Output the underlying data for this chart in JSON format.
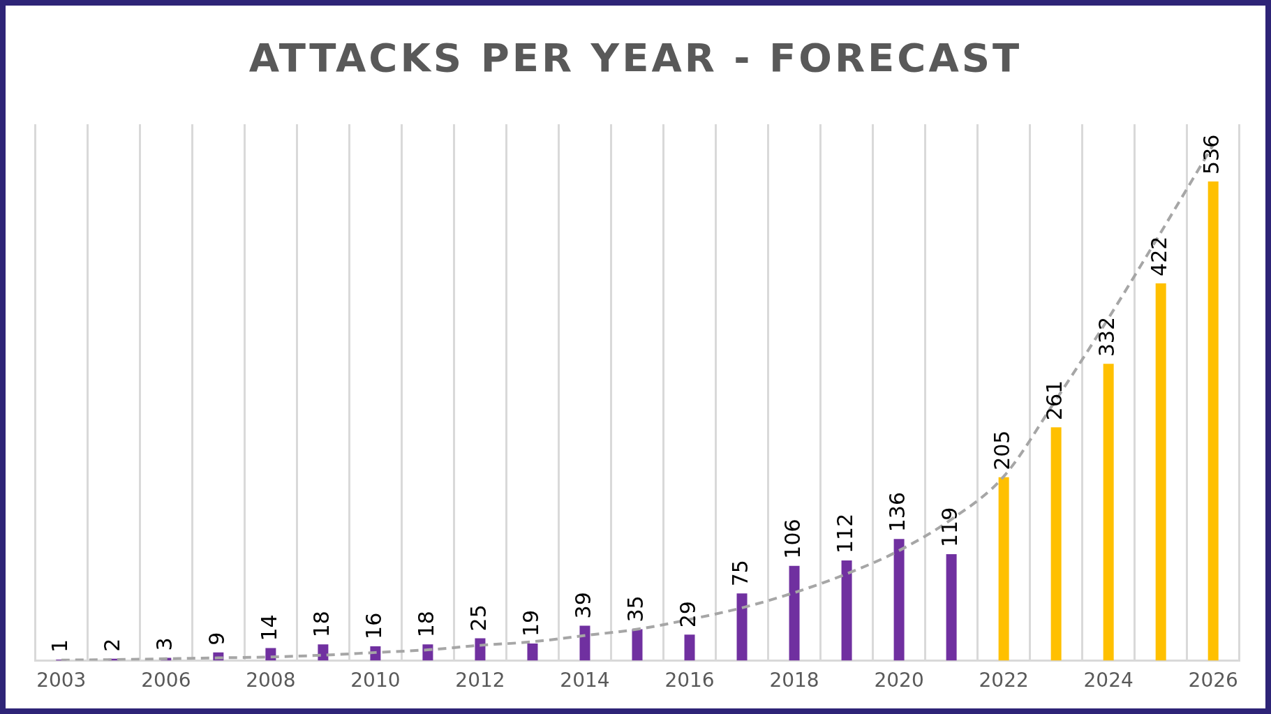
{
  "chart_data": {
    "type": "bar",
    "title": "ATTACKS  PER YEAR - FORECAST",
    "categories": [
      "2003",
      null,
      "2006",
      null,
      "2008",
      null,
      "2010",
      null,
      "2012",
      null,
      "2014",
      null,
      "2016",
      null,
      "2018",
      null,
      "2020",
      null,
      "2022",
      null,
      "2024",
      null,
      "2026"
    ],
    "series": [
      {
        "values": [
          1,
          2,
          3,
          9,
          14,
          18,
          16,
          18,
          25,
          19,
          39,
          35,
          29,
          75,
          106,
          112,
          136,
          119,
          205,
          261,
          332,
          422,
          536
        ],
        "value_labels": [
          "1",
          "2",
          "3",
          "9",
          "14",
          "18",
          "16",
          "18",
          "25",
          "19",
          "39",
          "35",
          "29",
          "75",
          "106",
          "112",
          "136",
          "119",
          "205",
          "261",
          "332",
          "422",
          "536"
        ],
        "colors": [
          "#7030a0",
          "#7030a0",
          "#7030a0",
          "#7030a0",
          "#7030a0",
          "#7030a0",
          "#7030a0",
          "#7030a0",
          "#7030a0",
          "#7030a0",
          "#7030a0",
          "#7030a0",
          "#7030a0",
          "#7030a0",
          "#7030a0",
          "#7030a0",
          "#7030a0",
          "#7030a0",
          "#ffc000",
          "#ffc000",
          "#ffc000",
          "#ffc000",
          "#ffc000"
        ]
      },
      {
        "type": "line",
        "color": "#a6a6a6",
        "line_style": "dashed",
        "marker": "none",
        "values": [
          0.5,
          1,
          2,
          3,
          4,
          6,
          9,
          12,
          17,
          21,
          28,
          35,
          46,
          59,
          76,
          97,
          123,
          158,
          206,
          292,
          383,
          479,
          577
        ]
      }
    ],
    "grid": "x",
    "legend": false,
    "tick_labels": "x"
  }
}
